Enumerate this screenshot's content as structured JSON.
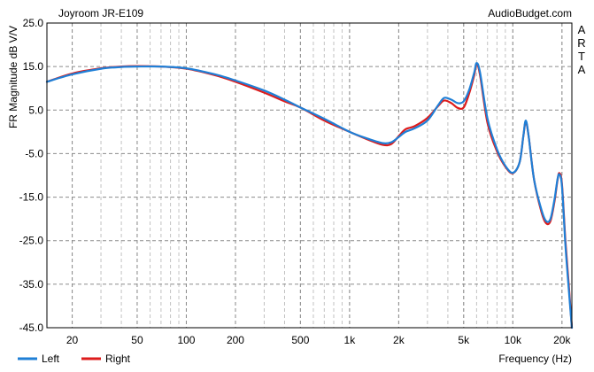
{
  "chart_data": {
    "type": "line",
    "title": "Joyroom JR-E109",
    "source": "AudioBudget.com",
    "side_label": "ARTA",
    "xlabel": "Frequency (Hz)",
    "ylabel": "FR Magnitude dB V/V",
    "x_scale": "log",
    "xlim": [
      14,
      23000
    ],
    "ylim": [
      -45,
      25
    ],
    "x_ticks": [
      {
        "value": 20,
        "label": "20"
      },
      {
        "value": 50,
        "label": "50"
      },
      {
        "value": 100,
        "label": "100"
      },
      {
        "value": 200,
        "label": "200"
      },
      {
        "value": 500,
        "label": "500"
      },
      {
        "value": 1000,
        "label": "1k"
      },
      {
        "value": 2000,
        "label": "2k"
      },
      {
        "value": 5000,
        "label": "5k"
      },
      {
        "value": 10000,
        "label": "10k"
      },
      {
        "value": 20000,
        "label": "20k"
      }
    ],
    "y_ticks": [
      {
        "value": 25,
        "label": "25.0"
      },
      {
        "value": 15,
        "label": "15.0"
      },
      {
        "value": 5,
        "label": "5.0"
      },
      {
        "value": -5,
        "label": "-5.0"
      },
      {
        "value": -15,
        "label": "-15.0"
      },
      {
        "value": -25,
        "label": "-25.0"
      },
      {
        "value": -35,
        "label": "-35.0"
      },
      {
        "value": -45,
        "label": "-45.0"
      }
    ],
    "grid": true,
    "legend_position": "bottom-left",
    "colors": {
      "Left": "#1f7fd6",
      "Right": "#dd1c1c"
    },
    "series": [
      {
        "name": "Right",
        "points": [
          [
            14,
            11.5
          ],
          [
            20,
            13.4
          ],
          [
            30,
            14.6
          ],
          [
            40,
            15.0
          ],
          [
            50,
            15.1
          ],
          [
            70,
            15.0
          ],
          [
            100,
            14.5
          ],
          [
            150,
            13.0
          ],
          [
            200,
            11.5
          ],
          [
            300,
            9.0
          ],
          [
            400,
            7.0
          ],
          [
            500,
            5.6
          ],
          [
            700,
            2.6
          ],
          [
            1000,
            0.0
          ],
          [
            1300,
            -1.8
          ],
          [
            1600,
            -3.0
          ],
          [
            1800,
            -2.8
          ],
          [
            2000,
            -1.0
          ],
          [
            2200,
            0.6
          ],
          [
            2500,
            1.3
          ],
          [
            3000,
            3.2
          ],
          [
            3500,
            6.0
          ],
          [
            3800,
            7.2
          ],
          [
            4200,
            6.6
          ],
          [
            4600,
            5.5
          ],
          [
            5000,
            5.6
          ],
          [
            5400,
            8.8
          ],
          [
            5800,
            13.0
          ],
          [
            6000,
            15.6
          ],
          [
            6300,
            13.0
          ],
          [
            7000,
            2.0
          ],
          [
            8000,
            -4.5
          ],
          [
            9000,
            -8.0
          ],
          [
            10000,
            -9.5
          ],
          [
            11000,
            -7.0
          ],
          [
            11600,
            -1.0
          ],
          [
            12000,
            2.3
          ],
          [
            12500,
            -1.0
          ],
          [
            13500,
            -11.0
          ],
          [
            15000,
            -18.5
          ],
          [
            16000,
            -21.0
          ],
          [
            17000,
            -20.5
          ],
          [
            18000,
            -16.0
          ],
          [
            18800,
            -11.0
          ],
          [
            19300,
            -9.5
          ],
          [
            20000,
            -12.0
          ],
          [
            21000,
            -25.0
          ],
          [
            22000,
            -35.0
          ],
          [
            23000,
            -45.0
          ]
        ]
      },
      {
        "name": "Left",
        "points": [
          [
            14,
            11.5
          ],
          [
            20,
            13.2
          ],
          [
            30,
            14.5
          ],
          [
            40,
            14.9
          ],
          [
            50,
            15.0
          ],
          [
            70,
            15.0
          ],
          [
            100,
            14.6
          ],
          [
            150,
            13.2
          ],
          [
            200,
            11.8
          ],
          [
            300,
            9.5
          ],
          [
            400,
            7.4
          ],
          [
            500,
            5.6
          ],
          [
            700,
            3.0
          ],
          [
            1000,
            0.0
          ],
          [
            1300,
            -1.6
          ],
          [
            1600,
            -2.6
          ],
          [
            1800,
            -2.4
          ],
          [
            2000,
            -1.2
          ],
          [
            2200,
            0.0
          ],
          [
            2500,
            0.8
          ],
          [
            3000,
            2.6
          ],
          [
            3500,
            6.2
          ],
          [
            3800,
            7.8
          ],
          [
            4200,
            7.4
          ],
          [
            4600,
            6.6
          ],
          [
            5000,
            7.0
          ],
          [
            5400,
            9.6
          ],
          [
            5800,
            13.6
          ],
          [
            6000,
            15.8
          ],
          [
            6300,
            13.6
          ],
          [
            7000,
            3.0
          ],
          [
            8000,
            -4.0
          ],
          [
            9000,
            -7.8
          ],
          [
            10000,
            -9.4
          ],
          [
            11000,
            -7.0
          ],
          [
            11600,
            -1.0
          ],
          [
            12000,
            2.6
          ],
          [
            12500,
            -1.0
          ],
          [
            13500,
            -11.0
          ],
          [
            15000,
            -18.0
          ],
          [
            16000,
            -20.5
          ],
          [
            17000,
            -20.0
          ],
          [
            18000,
            -15.5
          ],
          [
            18800,
            -10.8
          ],
          [
            19300,
            -9.8
          ],
          [
            20000,
            -12.5
          ],
          [
            21000,
            -26.0
          ],
          [
            22000,
            -36.0
          ],
          [
            23000,
            -45.0
          ]
        ]
      }
    ],
    "legend": [
      {
        "name": "Left",
        "label": "Left"
      },
      {
        "name": "Right",
        "label": "Right"
      }
    ]
  }
}
